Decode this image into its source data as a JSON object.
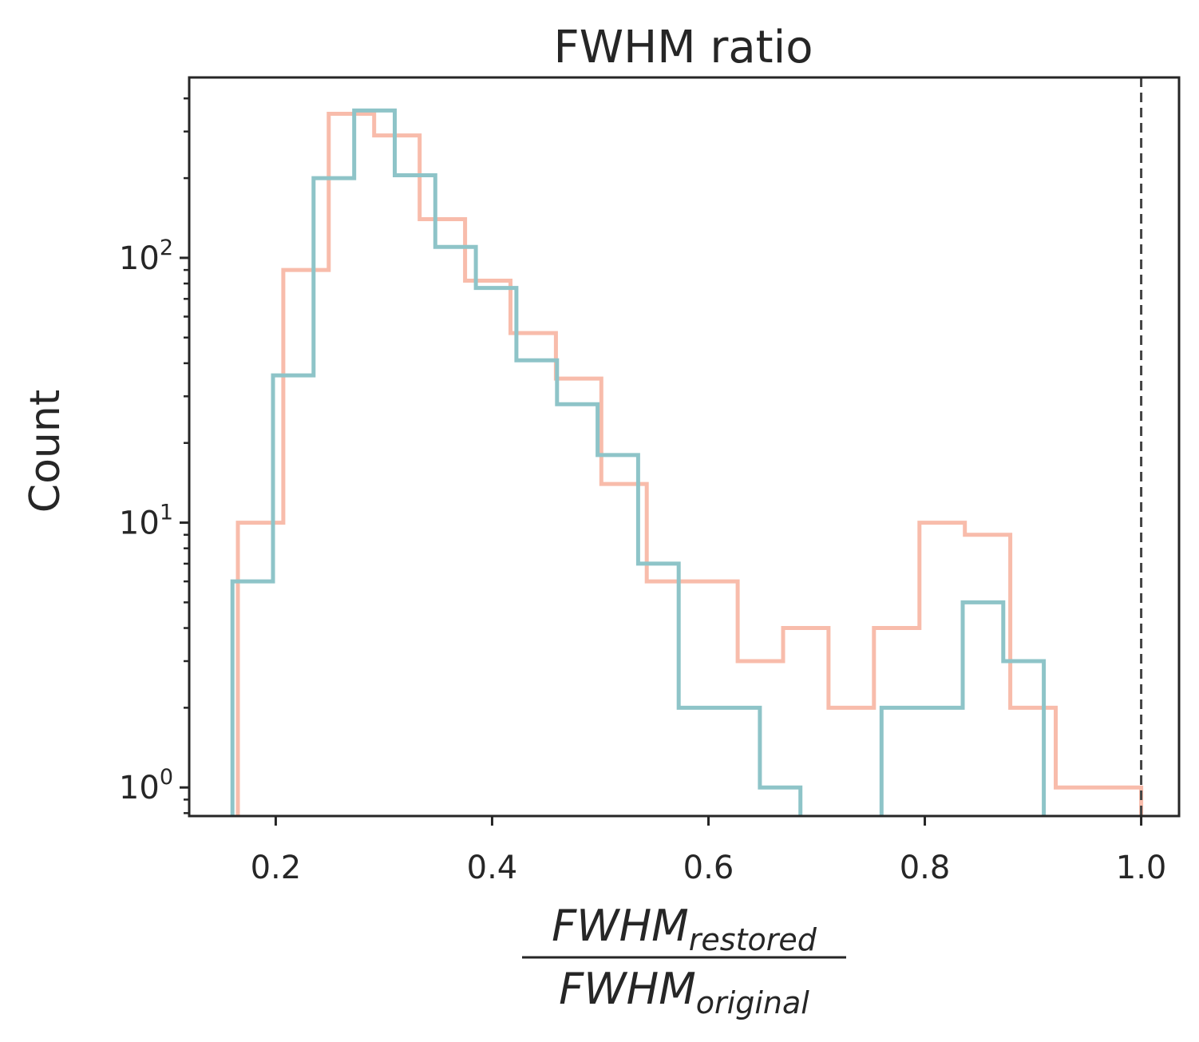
{
  "chart_data": {
    "type": "histogram",
    "title": "FWHM ratio",
    "ylabel": "Count",
    "xlabel": {
      "numerator": {
        "base": "FWHM",
        "subscript": "restored"
      },
      "denominator": {
        "base": "FWHM",
        "subscript": "original"
      }
    },
    "xlim": [
      0.12,
      1.035
    ],
    "ylim": [
      0.78,
      480
    ],
    "yscale": "log",
    "x_ticks": [
      "0.2",
      "0.4",
      "0.6",
      "0.8",
      "1.0"
    ],
    "x_tick_values": [
      0.2,
      0.4,
      0.6,
      0.8,
      1.0
    ],
    "y_ticks": [
      {
        "value": 1,
        "base": "10",
        "exp": "0"
      },
      {
        "value": 10,
        "base": "10",
        "exp": "1"
      },
      {
        "value": 100,
        "base": "10",
        "exp": "2"
      }
    ],
    "grid": false,
    "reference_line": {
      "x": 1.0,
      "style": "dashed",
      "color": "#444444"
    },
    "series": [
      {
        "color": "#f8bcab",
        "edges": [
          0.165,
          0.207,
          0.249,
          0.291,
          0.333,
          0.375,
          0.417,
          0.459,
          0.501,
          0.543,
          0.585,
          0.627,
          0.669,
          0.711,
          0.753,
          0.795,
          0.837,
          0.879,
          0.921,
          0.963,
          1.0
        ],
        "counts": [
          10,
          90,
          350,
          290,
          140,
          82,
          52,
          35,
          14,
          6,
          6,
          3,
          4,
          2,
          4,
          10,
          9,
          2,
          1,
          1
        ]
      },
      {
        "color": "#8ec4c8",
        "edges": [
          0.16,
          0.1975,
          0.235,
          0.2725,
          0.31,
          0.3475,
          0.385,
          0.4225,
          0.46,
          0.4975,
          0.535,
          0.5725,
          0.61,
          0.6475,
          0.685,
          0.7225,
          0.76,
          0.7975,
          0.835,
          0.8725,
          0.91
        ],
        "counts": [
          6,
          36,
          200,
          360,
          205,
          110,
          77,
          41,
          28,
          18,
          7,
          2,
          2,
          1,
          0,
          0,
          2,
          2,
          5,
          3
        ]
      }
    ]
  }
}
